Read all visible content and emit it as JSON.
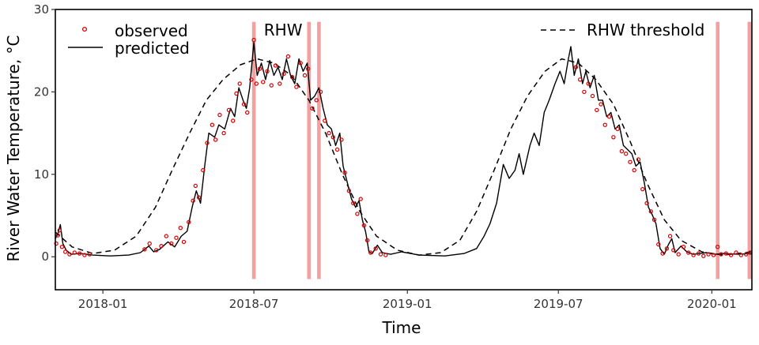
{
  "chart_data": {
    "type": "line",
    "xlabel": "Time",
    "ylabel": "River Water Temperature, °C",
    "xlim": [
      "2017-11-05",
      "2020-02-18"
    ],
    "ylim": [
      -4,
      30
    ],
    "x_ticks": [
      {
        "date": "2018-01-01",
        "label": "2018-01"
      },
      {
        "date": "2018-07-01",
        "label": "2018-07"
      },
      {
        "date": "2019-01-01",
        "label": "2019-01"
      },
      {
        "date": "2019-07-01",
        "label": "2019-07"
      },
      {
        "date": "2020-01-01",
        "label": "2020-01"
      }
    ],
    "y_ticks": [
      0,
      10,
      20,
      30
    ],
    "grid": false,
    "legend": [
      {
        "key": "observed",
        "label": "observed",
        "placement": "top-left"
      },
      {
        "key": "predicted",
        "label": "predicted",
        "placement": "top-left"
      },
      {
        "key": "threshold",
        "label": "RHW threshold",
        "placement": "top-right"
      }
    ],
    "annotation": {
      "text": "RHW",
      "date": "2018-07-13",
      "y": 27.5
    },
    "colors": {
      "observed": "#d40000",
      "predicted": "#000000",
      "threshold": "#000000",
      "rhw": "#f4a0a0"
    },
    "rhw_events": [
      "2018-07-01",
      "2018-09-05",
      "2018-09-17",
      "2020-01-08",
      "2020-02-15"
    ],
    "series": [
      {
        "key": "predicted",
        "style": "solid",
        "points": [
          [
            "2017-11-05",
            2.2
          ],
          [
            "2017-11-08",
            2.8
          ],
          [
            "2017-11-11",
            3.9
          ],
          [
            "2017-11-14",
            1.6
          ],
          [
            "2017-11-18",
            0.8
          ],
          [
            "2017-11-24",
            0.3
          ],
          [
            "2017-12-05",
            0.4
          ],
          [
            "2017-12-20",
            0.2
          ],
          [
            "2018-01-10",
            0.1
          ],
          [
            "2018-02-01",
            0.2
          ],
          [
            "2018-02-15",
            0.5
          ],
          [
            "2018-02-25",
            1.3
          ],
          [
            "2018-03-03",
            0.6
          ],
          [
            "2018-03-10",
            0.9
          ],
          [
            "2018-03-20",
            1.8
          ],
          [
            "2018-03-28",
            1.2
          ],
          [
            "2018-04-05",
            2.5
          ],
          [
            "2018-04-12",
            3.1
          ],
          [
            "2018-04-18",
            6.0
          ],
          [
            "2018-04-23",
            8.0
          ],
          [
            "2018-04-28",
            6.5
          ],
          [
            "2018-05-03",
            11.0
          ],
          [
            "2018-05-08",
            15.0
          ],
          [
            "2018-05-15",
            14.5
          ],
          [
            "2018-05-20",
            16.0
          ],
          [
            "2018-05-27",
            15.5
          ],
          [
            "2018-06-03",
            18.0
          ],
          [
            "2018-06-08",
            17.0
          ],
          [
            "2018-06-13",
            20.5
          ],
          [
            "2018-06-18",
            19.0
          ],
          [
            "2018-06-22",
            18.0
          ],
          [
            "2018-06-26",
            20.5
          ],
          [
            "2018-07-01",
            26.0
          ],
          [
            "2018-07-05",
            22.0
          ],
          [
            "2018-07-10",
            23.5
          ],
          [
            "2018-07-15",
            21.5
          ],
          [
            "2018-07-20",
            23.8
          ],
          [
            "2018-07-25",
            22.0
          ],
          [
            "2018-07-30",
            23.0
          ],
          [
            "2018-08-04",
            21.5
          ],
          [
            "2018-08-09",
            24.0
          ],
          [
            "2018-08-14",
            22.0
          ],
          [
            "2018-08-19",
            21.0
          ],
          [
            "2018-08-24",
            24.0
          ],
          [
            "2018-08-29",
            22.5
          ],
          [
            "2018-09-03",
            23.5
          ],
          [
            "2018-09-07",
            19.0
          ],
          [
            "2018-09-12",
            19.5
          ],
          [
            "2018-09-17",
            20.5
          ],
          [
            "2018-09-22",
            18.0
          ],
          [
            "2018-09-27",
            16.0
          ],
          [
            "2018-10-02",
            15.5
          ],
          [
            "2018-10-07",
            13.5
          ],
          [
            "2018-10-12",
            15.0
          ],
          [
            "2018-10-16",
            11.0
          ],
          [
            "2018-10-21",
            9.0
          ],
          [
            "2018-10-26",
            7.0
          ],
          [
            "2018-10-31",
            6.0
          ],
          [
            "2018-11-04",
            6.8
          ],
          [
            "2018-11-08",
            4.5
          ],
          [
            "2018-11-12",
            3.0
          ],
          [
            "2018-11-16",
            0.6
          ],
          [
            "2018-11-20",
            0.4
          ],
          [
            "2018-11-26",
            1.4
          ],
          [
            "2018-12-02",
            0.5
          ],
          [
            "2018-12-12",
            0.3
          ],
          [
            "2018-12-25",
            0.6
          ],
          [
            "2019-01-15",
            0.2
          ],
          [
            "2019-02-15",
            0.1
          ],
          [
            "2019-03-10",
            0.4
          ],
          [
            "2019-03-25",
            1.0
          ],
          [
            "2019-04-03",
            2.5
          ],
          [
            "2019-04-10",
            4.0
          ],
          [
            "2019-04-18",
            6.5
          ],
          [
            "2019-04-26",
            11.2
          ],
          [
            "2019-05-03",
            9.5
          ],
          [
            "2019-05-10",
            10.5
          ],
          [
            "2019-05-15",
            12.5
          ],
          [
            "2019-05-20",
            10.0
          ],
          [
            "2019-05-28",
            13.5
          ],
          [
            "2019-06-02",
            15.0
          ],
          [
            "2019-06-08",
            13.5
          ],
          [
            "2019-06-14",
            17.5
          ],
          [
            "2019-06-20",
            19.0
          ],
          [
            "2019-06-27",
            21.0
          ],
          [
            "2019-07-03",
            22.5
          ],
          [
            "2019-07-08",
            21.0
          ],
          [
            "2019-07-13",
            24.0
          ],
          [
            "2019-07-16",
            25.5
          ],
          [
            "2019-07-20",
            22.0
          ],
          [
            "2019-07-25",
            24.0
          ],
          [
            "2019-07-30",
            21.0
          ],
          [
            "2019-08-03",
            22.5
          ],
          [
            "2019-08-08",
            20.5
          ],
          [
            "2019-08-13",
            22.0
          ],
          [
            "2019-08-18",
            19.0
          ],
          [
            "2019-08-23",
            19.0
          ],
          [
            "2019-08-28",
            17.0
          ],
          [
            "2019-09-02",
            17.5
          ],
          [
            "2019-09-07",
            15.5
          ],
          [
            "2019-09-12",
            16.0
          ],
          [
            "2019-09-17",
            13.5
          ],
          [
            "2019-09-22",
            13.0
          ],
          [
            "2019-09-27",
            12.5
          ],
          [
            "2019-10-02",
            11.0
          ],
          [
            "2019-10-07",
            11.5
          ],
          [
            "2019-10-12",
            9.0
          ],
          [
            "2019-10-17",
            6.0
          ],
          [
            "2019-10-22",
            5.0
          ],
          [
            "2019-10-26",
            4.0
          ],
          [
            "2019-10-31",
            1.0
          ],
          [
            "2019-11-05",
            0.3
          ],
          [
            "2019-11-10",
            1.5
          ],
          [
            "2019-11-14",
            2.2
          ],
          [
            "2019-11-18",
            0.5
          ],
          [
            "2019-11-25",
            1.3
          ],
          [
            "2019-12-02",
            0.6
          ],
          [
            "2019-12-10",
            0.3
          ],
          [
            "2019-12-25",
            0.5
          ],
          [
            "2020-01-05",
            0.3
          ],
          [
            "2020-01-15",
            0.4
          ],
          [
            "2020-02-01",
            0.3
          ],
          [
            "2020-02-18",
            0.4
          ]
        ]
      },
      {
        "key": "threshold",
        "style": "dashed",
        "points": [
          [
            "2017-11-05",
            3.0
          ],
          [
            "2017-11-25",
            1.2
          ],
          [
            "2017-12-20",
            0.4
          ],
          [
            "2018-01-15",
            0.8
          ],
          [
            "2018-02-10",
            2.5
          ],
          [
            "2018-03-05",
            6.0
          ],
          [
            "2018-03-25",
            10.5
          ],
          [
            "2018-04-15",
            15.0
          ],
          [
            "2018-05-05",
            19.0
          ],
          [
            "2018-05-25",
            21.5
          ],
          [
            "2018-06-15",
            23.3
          ],
          [
            "2018-07-05",
            24.0
          ],
          [
            "2018-07-25",
            23.5
          ],
          [
            "2018-08-15",
            22.0
          ],
          [
            "2018-09-05",
            19.0
          ],
          [
            "2018-09-25",
            15.0
          ],
          [
            "2018-10-15",
            10.0
          ],
          [
            "2018-11-05",
            5.5
          ],
          [
            "2018-11-25",
            2.5
          ],
          [
            "2018-12-20",
            0.8
          ],
          [
            "2019-01-15",
            0.2
          ],
          [
            "2019-02-10",
            0.5
          ],
          [
            "2019-03-05",
            2.0
          ],
          [
            "2019-03-25",
            5.5
          ],
          [
            "2019-04-15",
            10.5
          ],
          [
            "2019-05-05",
            15.5
          ],
          [
            "2019-05-25",
            19.5
          ],
          [
            "2019-06-15",
            22.5
          ],
          [
            "2019-07-05",
            24.0
          ],
          [
            "2019-07-25",
            23.5
          ],
          [
            "2019-08-15",
            21.5
          ],
          [
            "2019-09-05",
            18.5
          ],
          [
            "2019-09-25",
            14.0
          ],
          [
            "2019-10-15",
            9.0
          ],
          [
            "2019-11-05",
            4.5
          ],
          [
            "2019-11-25",
            2.0
          ],
          [
            "2019-12-20",
            0.6
          ],
          [
            "2020-01-15",
            0.2
          ],
          [
            "2020-02-18",
            0.6
          ]
        ]
      }
    ],
    "observed": [
      [
        "2017-11-06",
        1.6
      ],
      [
        "2017-11-08",
        2.6
      ],
      [
        "2017-11-10",
        3.2
      ],
      [
        "2017-11-13",
        1.2
      ],
      [
        "2017-11-17",
        0.6
      ],
      [
        "2017-11-22",
        0.3
      ],
      [
        "2017-11-28",
        0.5
      ],
      [
        "2017-12-04",
        0.4
      ],
      [
        "2017-12-10",
        0.2
      ],
      [
        "2017-12-16",
        0.3
      ],
      [
        "2018-02-20",
        0.9
      ],
      [
        "2018-02-26",
        1.6
      ],
      [
        "2018-03-06",
        0.8
      ],
      [
        "2018-03-12",
        1.3
      ],
      [
        "2018-03-18",
        2.5
      ],
      [
        "2018-03-24",
        1.6
      ],
      [
        "2018-03-30",
        2.3
      ],
      [
        "2018-04-04",
        3.5
      ],
      [
        "2018-04-08",
        1.8
      ],
      [
        "2018-04-14",
        4.2
      ],
      [
        "2018-04-19",
        6.8
      ],
      [
        "2018-04-22",
        8.6
      ],
      [
        "2018-04-26",
        7.2
      ],
      [
        "2018-05-01",
        10.5
      ],
      [
        "2018-05-06",
        13.8
      ],
      [
        "2018-05-12",
        16.0
      ],
      [
        "2018-05-16",
        14.2
      ],
      [
        "2018-05-21",
        17.2
      ],
      [
        "2018-05-26",
        15.0
      ],
      [
        "2018-06-01",
        17.8
      ],
      [
        "2018-06-06",
        16.5
      ],
      [
        "2018-06-10",
        19.8
      ],
      [
        "2018-06-14",
        21.0
      ],
      [
        "2018-06-19",
        18.5
      ],
      [
        "2018-06-23",
        17.5
      ],
      [
        "2018-06-28",
        21.5
      ],
      [
        "2018-07-01",
        26.3
      ],
      [
        "2018-07-04",
        21.0
      ],
      [
        "2018-07-08",
        22.8
      ],
      [
        "2018-07-12",
        21.2
      ],
      [
        "2018-07-17",
        22.5
      ],
      [
        "2018-07-22",
        20.8
      ],
      [
        "2018-07-27",
        23.2
      ],
      [
        "2018-08-01",
        21.0
      ],
      [
        "2018-08-06",
        22.2
      ],
      [
        "2018-08-11",
        24.3
      ],
      [
        "2018-08-16",
        21.8
      ],
      [
        "2018-08-21",
        20.6
      ],
      [
        "2018-08-26",
        23.5
      ],
      [
        "2018-08-31",
        22.0
      ],
      [
        "2018-09-04",
        22.8
      ],
      [
        "2018-09-09",
        18.0
      ],
      [
        "2018-09-14",
        19.0
      ],
      [
        "2018-09-19",
        20.0
      ],
      [
        "2018-09-24",
        16.5
      ],
      [
        "2018-09-29",
        15.0
      ],
      [
        "2018-10-04",
        14.5
      ],
      [
        "2018-10-09",
        13.0
      ],
      [
        "2018-10-14",
        14.2
      ],
      [
        "2018-10-18",
        10.2
      ],
      [
        "2018-10-23",
        8.0
      ],
      [
        "2018-10-28",
        6.5
      ],
      [
        "2018-11-02",
        5.2
      ],
      [
        "2018-11-06",
        7.0
      ],
      [
        "2018-11-10",
        3.8
      ],
      [
        "2018-11-14",
        2.0
      ],
      [
        "2018-11-18",
        0.5
      ],
      [
        "2018-11-24",
        1.0
      ],
      [
        "2018-11-30",
        0.3
      ],
      [
        "2018-12-06",
        0.2
      ],
      [
        "2019-07-22",
        23.0
      ],
      [
        "2019-07-27",
        21.5
      ],
      [
        "2019-08-01",
        20.0
      ],
      [
        "2019-08-06",
        21.0
      ],
      [
        "2019-08-11",
        19.5
      ],
      [
        "2019-08-16",
        17.8
      ],
      [
        "2019-08-21",
        18.5
      ],
      [
        "2019-08-26",
        16.0
      ],
      [
        "2019-08-31",
        17.0
      ],
      [
        "2019-09-05",
        14.5
      ],
      [
        "2019-09-10",
        15.5
      ],
      [
        "2019-09-15",
        12.8
      ],
      [
        "2019-09-20",
        12.5
      ],
      [
        "2019-09-25",
        11.5
      ],
      [
        "2019-09-30",
        10.5
      ],
      [
        "2019-10-05",
        11.8
      ],
      [
        "2019-10-10",
        8.2
      ],
      [
        "2019-10-15",
        6.5
      ],
      [
        "2019-10-20",
        5.5
      ],
      [
        "2019-10-24",
        4.5
      ],
      [
        "2019-10-29",
        1.5
      ],
      [
        "2019-11-03",
        0.4
      ],
      [
        "2019-11-08",
        1.0
      ],
      [
        "2019-11-12",
        2.5
      ],
      [
        "2019-11-16",
        0.8
      ],
      [
        "2019-11-22",
        0.3
      ],
      [
        "2019-11-28",
        1.2
      ],
      [
        "2019-12-04",
        0.5
      ],
      [
        "2019-12-10",
        0.2
      ],
      [
        "2019-12-16",
        0.4
      ],
      [
        "2019-12-22",
        0.1
      ],
      [
        "2019-12-28",
        0.3
      ],
      [
        "2020-01-03",
        0.2
      ],
      [
        "2020-01-08",
        1.2
      ],
      [
        "2020-01-12",
        0.3
      ],
      [
        "2020-01-18",
        0.4
      ],
      [
        "2020-01-24",
        0.2
      ],
      [
        "2020-01-30",
        0.5
      ],
      [
        "2020-02-05",
        0.2
      ],
      [
        "2020-02-11",
        0.3
      ],
      [
        "2020-02-16",
        0.5
      ]
    ]
  }
}
